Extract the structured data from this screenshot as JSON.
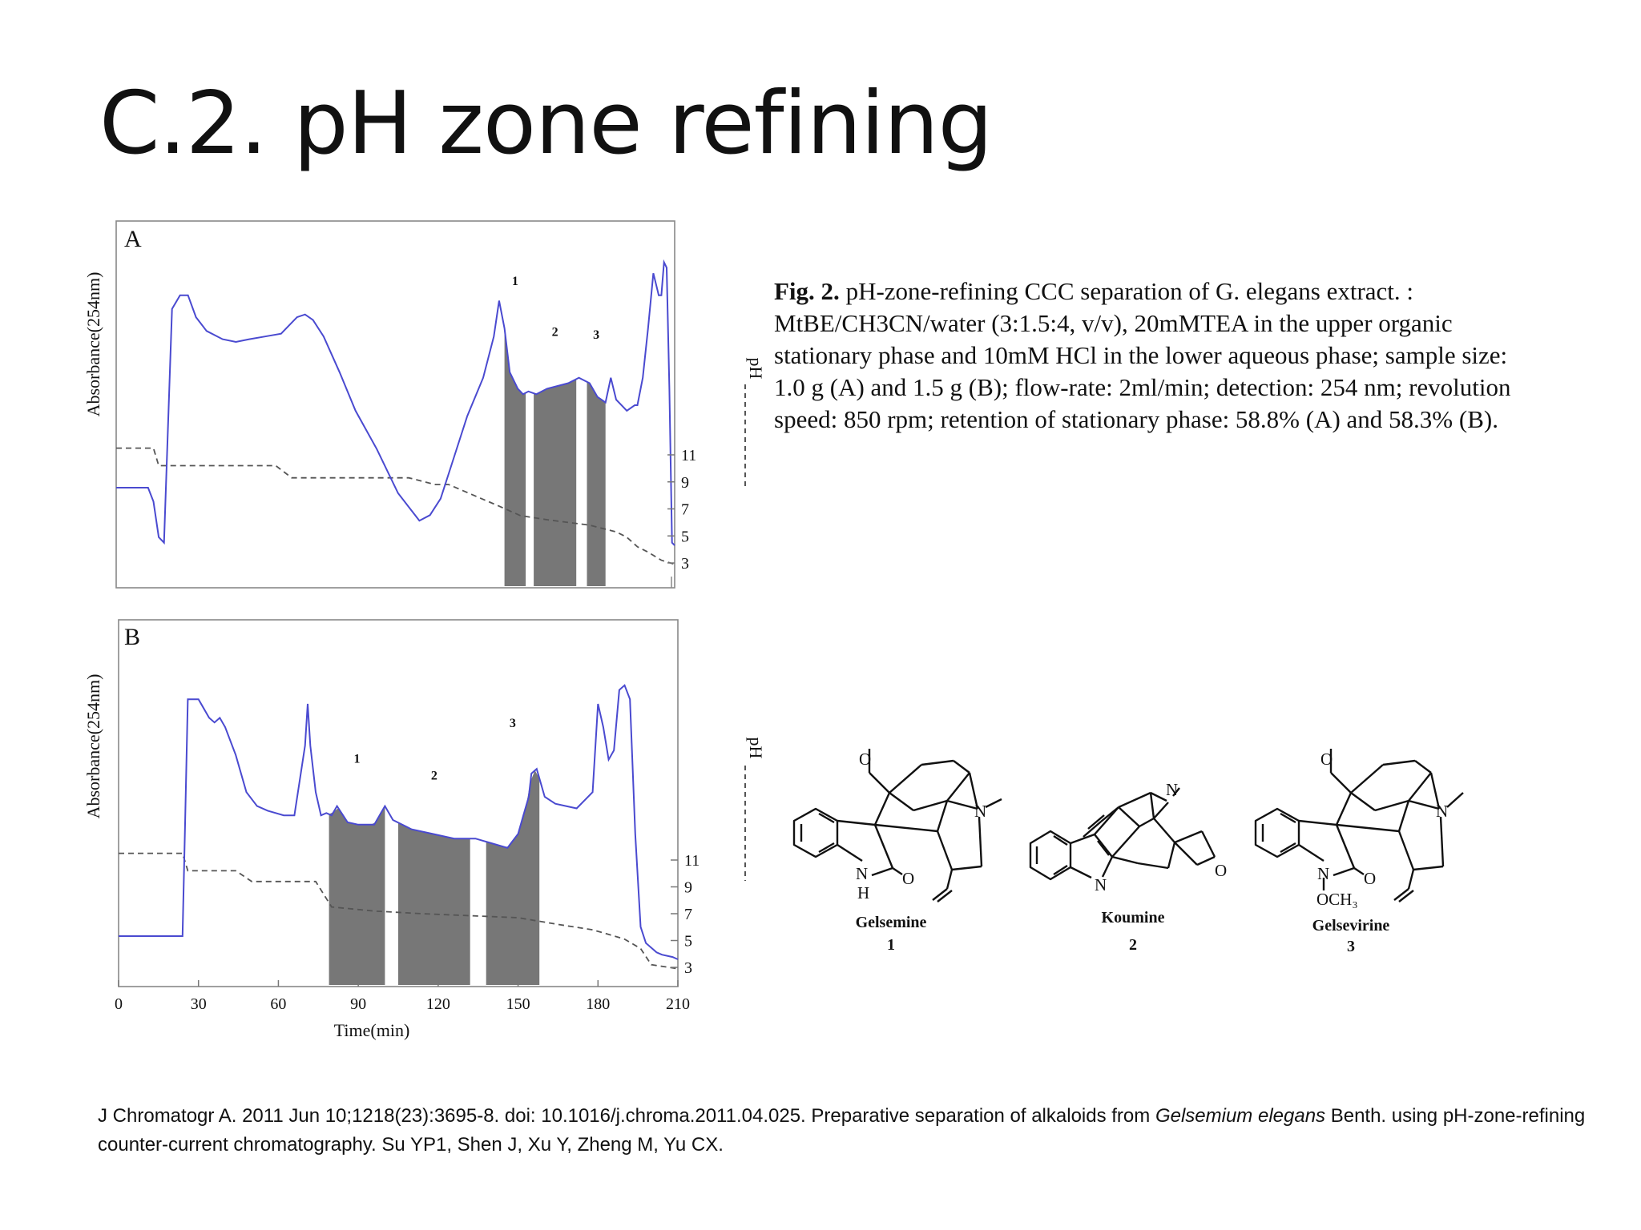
{
  "title": "C.2. pH zone refining",
  "caption": {
    "label": "Fig. 2.",
    "text": "pH-zone-refining CCC separation of G. elegans extract. : MtBE/CH3CN/water (3:1.5:4, v/v), 20mMTEA in the upper organic stationary phase and 10mM HCl in the lower aqueous phase; sample size: 1.0 g (A) and 1.5 g (B); flow-rate: 2ml/min; detection: 254 nm; revolution speed: 850 rpm; retention of stationary phase: 58.8% (A) and 58.3% (B)."
  },
  "reference": {
    "part1": "J Chromatogr A. 2011 Jun 10;1218(23):3695-8. doi: 10.1016/j.chroma.2011.04.025.  Preparative separation of alkaloids from ",
    "italic": "Gelsemium elegans",
    "part2": " Benth. using pH-zone-refining counter-current chromatography. Su YP1, Shen J, Xu Y, Zheng M, Yu CX."
  },
  "compounds": [
    {
      "name": "Gelsemine",
      "number": "1"
    },
    {
      "name": "Koumine",
      "number": "2"
    },
    {
      "name": "Gelsevirine",
      "number": "3"
    }
  ],
  "chart_data": [
    {
      "type": "line",
      "panel_label": "A",
      "ylabel": "Absorbance(254nm)",
      "y2label": "pH",
      "y2_ticks": [
        "11",
        "9",
        "7",
        "5",
        "3"
      ],
      "x_range": [
        0,
        210
      ],
      "series": [
        {
          "role": "absorbance",
          "color": "#4a4ad0",
          "x": [
            0,
            12,
            14,
            16,
            18,
            21,
            24,
            27,
            30,
            34,
            40,
            45,
            50,
            56,
            62,
            65,
            68,
            71,
            74,
            78,
            84,
            90,
            98,
            106,
            114,
            118,
            122,
            126,
            132,
            138,
            142,
            144,
            146,
            148,
            151,
            153,
            155,
            158,
            162,
            170,
            174,
            178,
            181,
            184,
            186,
            188,
            192,
            195,
            196,
            198,
            200,
            202,
            204,
            205,
            206,
            207,
            208,
            209,
            210
          ],
          "y": [
            30,
            30,
            25,
            12,
            10,
            95,
            100,
            100,
            92,
            87,
            84,
            83,
            84,
            85,
            86,
            89,
            92,
            93,
            91,
            85,
            72,
            58,
            44,
            28,
            18,
            20,
            26,
            38,
            56,
            70,
            85,
            98,
            88,
            72,
            66,
            64,
            65,
            64,
            66,
            68,
            70,
            68,
            63,
            61,
            70,
            62,
            58,
            60,
            60,
            70,
            88,
            108,
            100,
            100,
            112,
            110,
            66,
            10,
            9
          ]
        },
        {
          "role": "pH",
          "style": "dashed",
          "color": "#555555",
          "x": [
            0,
            14,
            16,
            20,
            60,
            66,
            110,
            120,
            125,
            144,
            152,
            162,
            178,
            188,
            192,
            196,
            200,
            205,
            210
          ],
          "y": [
            11.5,
            11.5,
            10.2,
            10.2,
            10.2,
            9.3,
            9.3,
            8.8,
            8.8,
            7.2,
            6.5,
            6.2,
            5.8,
            5.3,
            4.9,
            4.2,
            3.8,
            3.2,
            2.9
          ]
        }
      ],
      "fractions": [
        {
          "label": "1",
          "x": [
            146,
            154
          ]
        },
        {
          "label": "2",
          "x": [
            157,
            173
          ]
        },
        {
          "label": "3",
          "x": [
            177,
            184
          ]
        }
      ]
    },
    {
      "type": "line",
      "panel_label": "B",
      "xlabel": "Time(min)",
      "ylabel": "Absorbance(254nm)",
      "y2label": "pH",
      "x_ticks": [
        0,
        30,
        60,
        90,
        120,
        150,
        180,
        210
      ],
      "y2_ticks": [
        "11",
        "9",
        "7",
        "5",
        "3"
      ],
      "x_range": [
        0,
        210
      ],
      "series": [
        {
          "role": "absorbance",
          "color": "#4a4ad0",
          "x": [
            0,
            24,
            25,
            26,
            30,
            34,
            36,
            38,
            40,
            44,
            48,
            52,
            56,
            62,
            66,
            70,
            71,
            72,
            74,
            76,
            78,
            80,
            82,
            86,
            90,
            96,
            98,
            100,
            103,
            110,
            118,
            126,
            134,
            140,
            146,
            150,
            152,
            154,
            155,
            157,
            160,
            164,
            168,
            172,
            178,
            180,
            182,
            184,
            186,
            188,
            190,
            192,
            194,
            196,
            198,
            200,
            202,
            204,
            208,
            210
          ],
          "y": [
            10,
            10,
            60,
            112,
            112,
            104,
            102,
            104,
            100,
            88,
            72,
            66,
            64,
            62,
            62,
            92,
            110,
            92,
            72,
            62,
            63,
            62,
            66,
            59,
            58,
            58,
            62,
            66,
            60,
            56,
            54,
            52,
            52,
            50,
            48,
            54,
            62,
            70,
            80,
            82,
            70,
            67,
            66,
            65,
            72,
            110,
            100,
            86,
            90,
            116,
            118,
            112,
            54,
            14,
            7,
            5,
            3,
            2,
            1,
            0
          ]
        },
        {
          "role": "pH",
          "style": "dashed",
          "color": "#555555",
          "x": [
            0,
            24,
            26,
            30,
            44,
            50,
            74,
            80,
            96,
            114,
            150,
            165,
            178,
            185,
            190,
            196,
            200,
            210
          ],
          "y": [
            11.5,
            11.5,
            10.2,
            10.2,
            10.2,
            9.4,
            9.4,
            7.5,
            7.2,
            7,
            6.7,
            6.2,
            5.8,
            5.4,
            5.1,
            4.4,
            3.2,
            2.9
          ]
        }
      ],
      "fractions": [
        {
          "label": "1",
          "x": [
            79,
            100
          ]
        },
        {
          "label": "2",
          "x": [
            105,
            132
          ]
        },
        {
          "label": "3",
          "x": [
            138,
            158
          ]
        }
      ]
    }
  ]
}
